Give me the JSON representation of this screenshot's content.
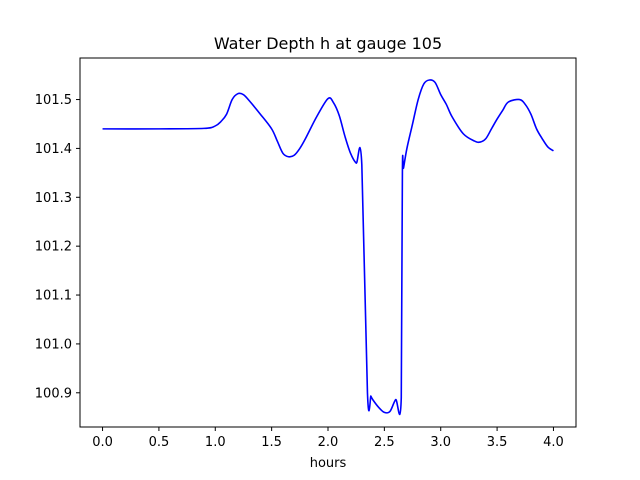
{
  "chart_data": {
    "type": "line",
    "title": "Water Depth h at gauge 105",
    "xlabel": "hours",
    "ylabel": "",
    "xlim": [
      -0.2,
      4.2
    ],
    "ylim": [
      100.83,
      101.585
    ],
    "xticks": [
      0.0,
      0.5,
      1.0,
      1.5,
      2.0,
      2.5,
      3.0,
      3.5,
      4.0
    ],
    "xtick_labels": [
      "0.0",
      "0.5",
      "1.0",
      "1.5",
      "2.0",
      "2.5",
      "3.0",
      "3.5",
      "4.0"
    ],
    "yticks": [
      100.9,
      101.0,
      101.1,
      101.2,
      101.3,
      101.4,
      101.5
    ],
    "ytick_labels": [
      "100.9",
      "101.0",
      "101.1",
      "101.2",
      "101.3",
      "101.4",
      "101.5"
    ],
    "grid": false,
    "series": [
      {
        "color": "#0000ff",
        "x": [
          0.0,
          0.5,
          0.9,
          1.0,
          1.05,
          1.1,
          1.15,
          1.2,
          1.25,
          1.3,
          1.4,
          1.5,
          1.55,
          1.6,
          1.65,
          1.7,
          1.75,
          1.8,
          1.9,
          2.0,
          2.05,
          2.1,
          2.15,
          2.2,
          2.25,
          2.3,
          2.35,
          2.38,
          2.38,
          2.4,
          2.45,
          2.5,
          2.55,
          2.6,
          2.65,
          2.66,
          2.67,
          2.7,
          2.75,
          2.8,
          2.85,
          2.9,
          2.95,
          3.0,
          3.05,
          3.1,
          3.2,
          3.3,
          3.35,
          3.4,
          3.45,
          3.5,
          3.55,
          3.6,
          3.7,
          3.75,
          3.8,
          3.85,
          3.9,
          3.95,
          4.0
        ],
        "y": [
          101.44,
          101.44,
          101.441,
          101.446,
          101.455,
          101.47,
          101.5,
          101.512,
          101.51,
          101.498,
          101.47,
          101.44,
          101.415,
          101.39,
          101.383,
          101.386,
          101.4,
          101.42,
          101.465,
          101.502,
          101.493,
          101.467,
          101.425,
          101.39,
          101.37,
          101.367,
          100.9,
          100.893,
          100.893,
          100.885,
          100.87,
          100.86,
          100.862,
          100.886,
          100.89,
          101.35,
          101.36,
          101.4,
          101.45,
          101.5,
          101.532,
          101.54,
          101.535,
          101.51,
          101.49,
          101.465,
          101.43,
          101.415,
          101.413,
          101.42,
          101.44,
          101.46,
          101.478,
          101.495,
          101.5,
          101.49,
          101.47,
          101.44,
          101.42,
          101.403,
          101.395
        ]
      }
    ]
  }
}
